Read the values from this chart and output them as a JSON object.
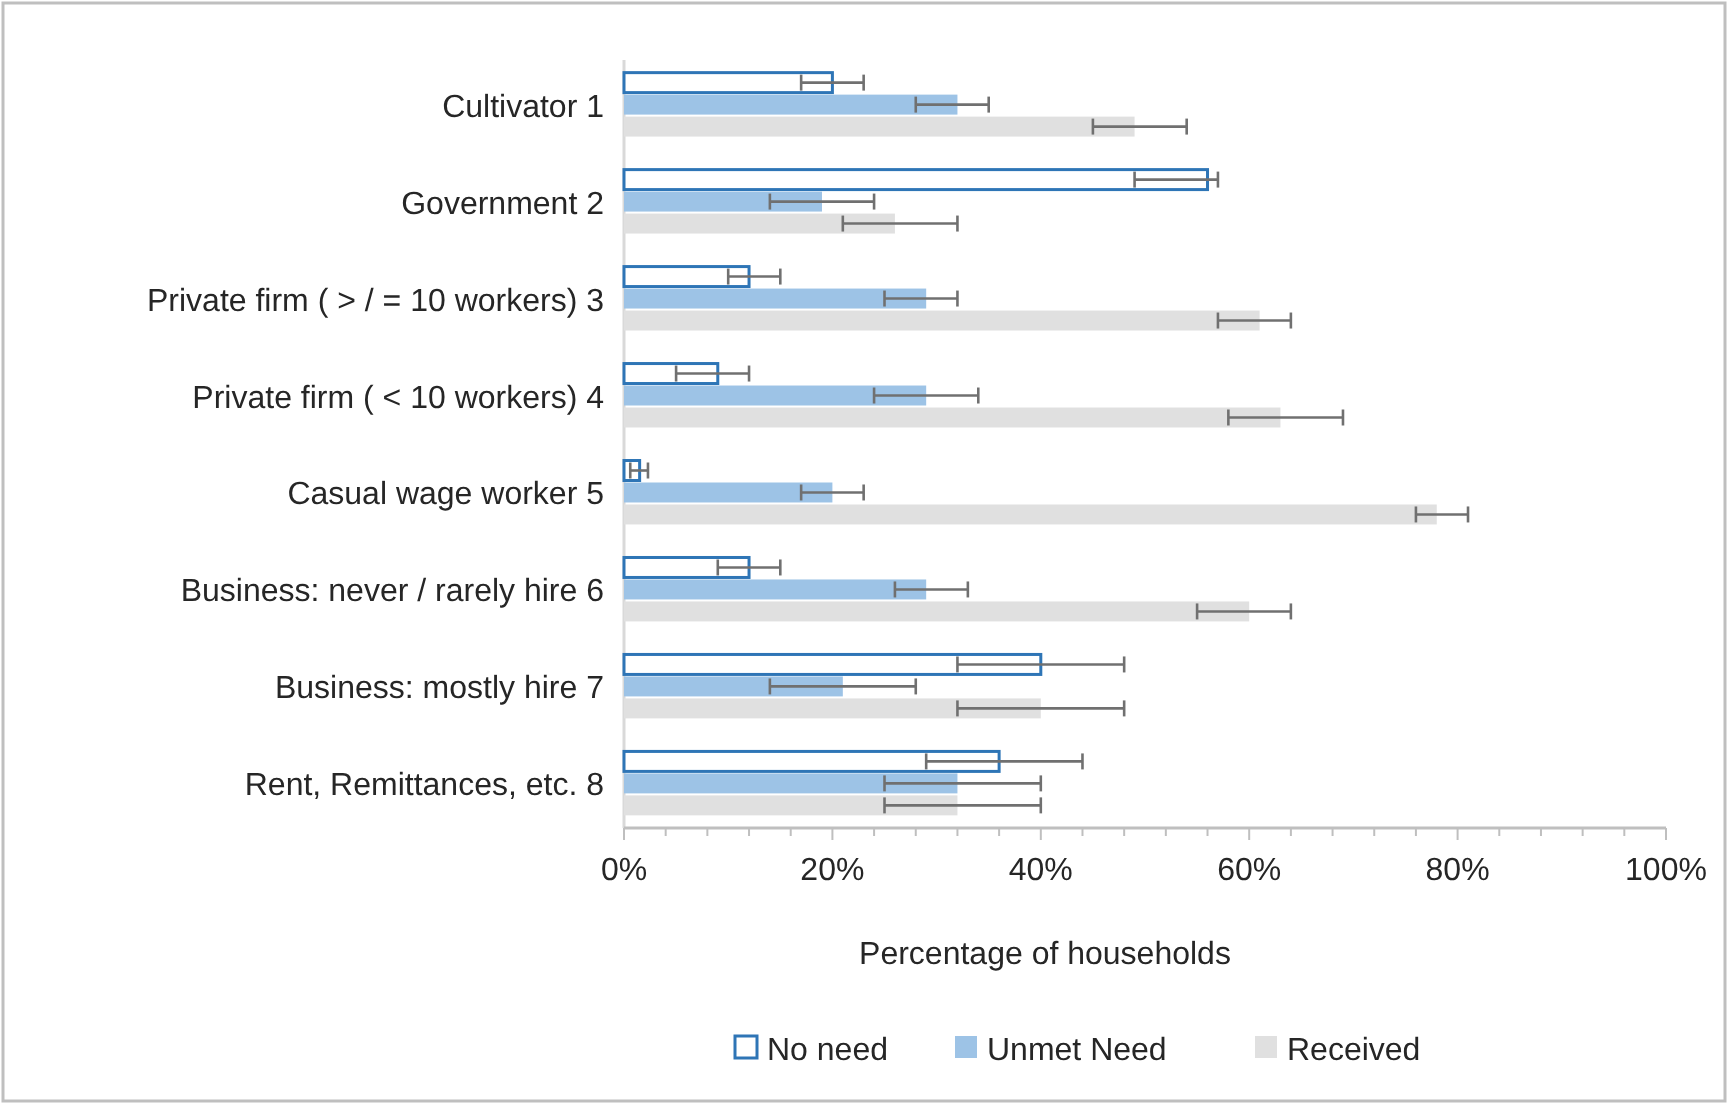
{
  "chart_data": {
    "type": "bar",
    "orientation": "horizontal",
    "xlabel": "Percentage of households",
    "categories": [
      "Cultivator 1",
      "Government 2",
      "Private firm ( > / = 10 workers) 3",
      "Private firm ( < 10 workers) 4",
      "Casual wage worker 5",
      "Business: never / rarely hire 6",
      "Business: mostly hire 7",
      "Rent, Remittances, etc. 8"
    ],
    "series": [
      {
        "name": "No need",
        "color": "#2e75b6",
        "values": [
          20,
          56,
          12,
          9,
          1.5,
          12,
          40,
          36
        ],
        "errors": [
          [
            17,
            23
          ],
          [
            49,
            57
          ],
          [
            10,
            15
          ],
          [
            5,
            12
          ],
          [
            0.6,
            2.3
          ],
          [
            9,
            15
          ],
          [
            32,
            48
          ],
          [
            29,
            44
          ]
        ]
      },
      {
        "name": "Unmet Need",
        "color": "#9dc3e6",
        "values": [
          32,
          19,
          29,
          29,
          20,
          29,
          21,
          32
        ],
        "errors": [
          [
            28,
            35
          ],
          [
            14,
            24
          ],
          [
            25,
            32
          ],
          [
            24,
            34
          ],
          [
            17,
            23
          ],
          [
            26,
            33
          ],
          [
            14,
            28
          ],
          [
            25,
            40
          ]
        ]
      },
      {
        "name": "Received",
        "color": "#e0e0e0",
        "values": [
          49,
          26,
          61,
          63,
          78,
          60,
          40,
          32
        ],
        "errors": [
          [
            45,
            54
          ],
          [
            21,
            32
          ],
          [
            57,
            64
          ],
          [
            58,
            69
          ],
          [
            76,
            81
          ],
          [
            55,
            64
          ],
          [
            32,
            48
          ],
          [
            25,
            40
          ]
        ]
      }
    ],
    "xlim": [
      0,
      100
    ],
    "xticks": [
      {
        "value": 0,
        "label": "0%"
      },
      {
        "value": 4,
        "label": null
      },
      {
        "value": 8,
        "label": null
      },
      {
        "value": 12,
        "label": null
      },
      {
        "value": 16,
        "label": null
      },
      {
        "value": 20,
        "label": "20%"
      },
      {
        "value": 24,
        "label": null
      },
      {
        "value": 28,
        "label": null
      },
      {
        "value": 32,
        "label": null
      },
      {
        "value": 36,
        "label": null
      },
      {
        "value": 40,
        "label": "40%"
      },
      {
        "value": 44,
        "label": null
      },
      {
        "value": 48,
        "label": null
      },
      {
        "value": 52,
        "label": null
      },
      {
        "value": 56,
        "label": null
      },
      {
        "value": 60,
        "label": "60%"
      },
      {
        "value": 64,
        "label": null
      },
      {
        "value": 68,
        "label": null
      },
      {
        "value": 72,
        "label": null
      },
      {
        "value": 76,
        "label": null
      },
      {
        "value": 80,
        "label": "80%"
      },
      {
        "value": 84,
        "label": null
      },
      {
        "value": 88,
        "label": null
      },
      {
        "value": 92,
        "label": null
      },
      {
        "value": 96,
        "label": null
      },
      {
        "value": 100,
        "label": "100%"
      }
    ],
    "legend": "bottom",
    "grid": false
  }
}
